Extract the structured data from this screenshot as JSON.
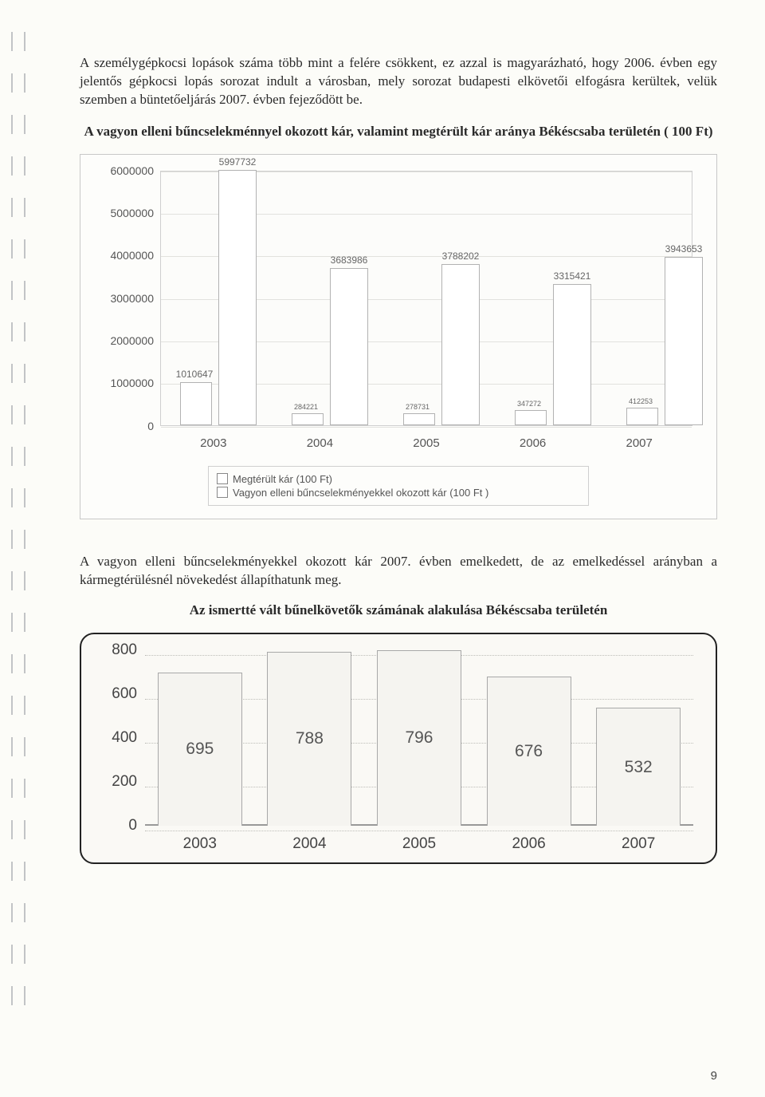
{
  "paragraph1": "A személygépkocsi lopások száma több mint a felére csökkent, ez azzal is magyarázható, hogy 2006. évben egy jelentős gépkocsi lopás sorozat indult a városban, mely sorozat budapesti elkövetői elfogásra kerültek, velük szemben a büntetőeljárás 2007. évben fejeződött be.",
  "chart1_title": "A vagyon elleni bűncselekménnyel okozott kár, valamint megtérült kár aránya Békéscsaba területén ( 100 Ft)",
  "chart1": {
    "type": "bar",
    "categories": [
      "2003",
      "2004",
      "2005",
      "2006",
      "2007"
    ],
    "yticks": [
      "0",
      "1000000",
      "2000000",
      "3000000",
      "4000000",
      "5000000",
      "6000000"
    ],
    "ymax": 6000000,
    "series_a_label": "Megtérült kár (100 Ft)",
    "series_b_label": "Vagyon elleni bűncselekményekkel okozott kár (100 Ft )",
    "series_a": [
      1010647,
      284221,
      278731,
      347272,
      412253
    ],
    "series_b": [
      5997732,
      3683986,
      3788202,
      3315421,
      3943653
    ],
    "series_a_labels": [
      "1010647",
      "284221",
      "278731",
      "347272",
      "412253"
    ],
    "series_b_labels": [
      "5997732",
      "3683986",
      "3788202",
      "3315421",
      "3943653"
    ],
    "bar_fill": "#ffffff",
    "bar_border": "#b2b2b2",
    "background": "#fcfcfa",
    "grid_color": "#e2e2de",
    "label_font_size_big": 12,
    "label_font_size_small": 9
  },
  "paragraph2": "A vagyon elleni bűncselekményekkel okozott kár 2007. évben emelkedett, de az emelkedéssel arányban a kármegtérülésnél növekedést állapíthatunk meg.",
  "chart2_title": "Az ismertté vált bűnelkövetők számának alakulása Békéscsaba területén",
  "chart2": {
    "type": "bar",
    "categories": [
      "2003",
      "2004",
      "2005",
      "2006",
      "2007"
    ],
    "yticks": [
      "0",
      "200",
      "400",
      "600",
      "800"
    ],
    "ymax": 800,
    "values": [
      695,
      788,
      796,
      676,
      532
    ],
    "value_labels": [
      "695",
      "788",
      "796",
      "676",
      "532"
    ],
    "bar_fill": "#f5f4f0",
    "bar_border": "#a8a8a8",
    "grid_color": "#bdbdb8",
    "background": "#faf9f5"
  },
  "page_number": "9"
}
